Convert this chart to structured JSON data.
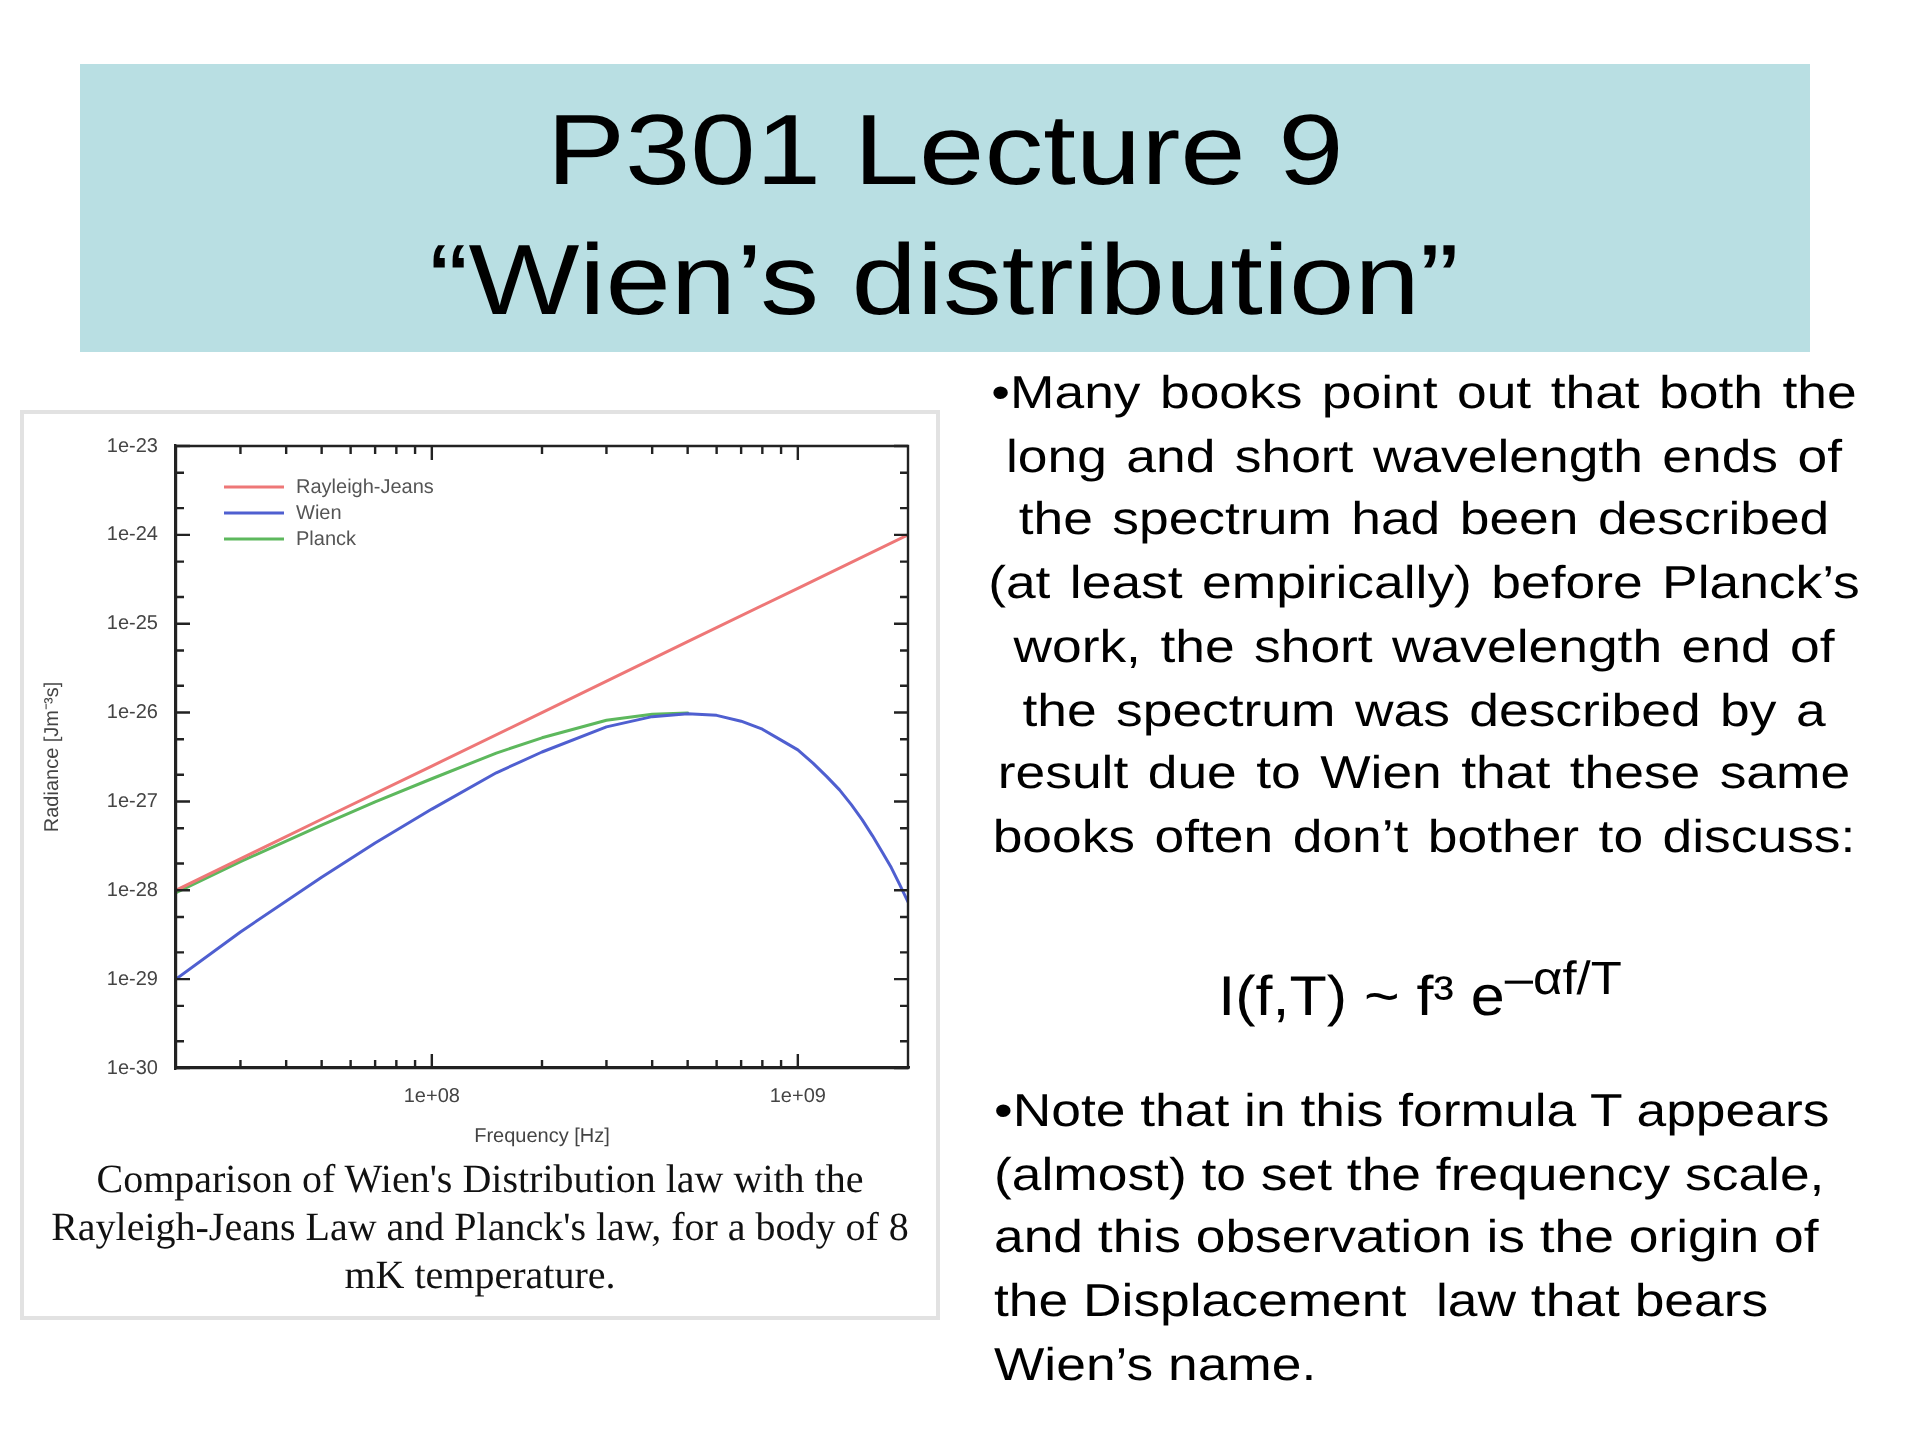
{
  "chart_data": {
    "type": "line",
    "title": "P301 Lecture 9",
    "subtitle": "“Wien’s distribution”",
    "xlabel": "Frequency [Hz]",
    "ylabel": "Radiance [Jm⁻³s]",
    "log": "xy",
    "legend": "top left",
    "marker": "none",
    "line_style": "solid",
    "xlim": [
      20000000.0,
      2000000000.0
    ],
    "xticks": [
      {
        "value": 30000000.0,
        "label": null
      },
      {
        "value": 40000000.0,
        "label": null
      },
      {
        "value": 50000000.0,
        "label": null
      },
      {
        "value": 60000000.0,
        "label": null
      },
      {
        "value": 70000000.0,
        "label": null
      },
      {
        "value": 80000000.0,
        "label": null
      },
      {
        "value": 90000000.0,
        "label": null
      },
      {
        "value": 100000000.0,
        "label": "1e+08"
      },
      {
        "value": 200000000.0,
        "label": null
      },
      {
        "value": 300000000.0,
        "label": null
      },
      {
        "value": 400000000.0,
        "label": null
      },
      {
        "value": 500000000.0,
        "label": null
      },
      {
        "value": 600000000.0,
        "label": null
      },
      {
        "value": 700000000.0,
        "label": null
      },
      {
        "value": 800000000.0,
        "label": null
      },
      {
        "value": 900000000.0,
        "label": null
      },
      {
        "value": 1000000000.0,
        "label": "1e+09"
      }
    ],
    "ylim": [
      1e-30,
      1e-23
    ],
    "yticks": [
      {
        "value": 1e-30,
        "label": "1e-30"
      },
      {
        "value": 2e-30,
        "label": null
      },
      {
        "value": 5e-30,
        "label": null
      },
      {
        "value": 1e-29,
        "label": "1e-29"
      },
      {
        "value": 2e-29,
        "label": null
      },
      {
        "value": 5e-29,
        "label": null
      },
      {
        "value": 1e-28,
        "label": "1e-28"
      },
      {
        "value": 2e-28,
        "label": null
      },
      {
        "value": 5e-28,
        "label": null
      },
      {
        "value": 1e-27,
        "label": "1e-27"
      },
      {
        "value": 2e-27,
        "label": null
      },
      {
        "value": 5e-27,
        "label": null
      },
      {
        "value": 1e-26,
        "label": "1e-26"
      },
      {
        "value": 2e-26,
        "label": null
      },
      {
        "value": 5e-26,
        "label": null
      },
      {
        "value": 1e-25,
        "label": "1e-25"
      },
      {
        "value": 2e-25,
        "label": null
      },
      {
        "value": 5e-25,
        "label": null
      },
      {
        "value": 1e-24,
        "label": "1e-24"
      },
      {
        "value": 2e-24,
        "label": null
      },
      {
        "value": 5e-24,
        "label": null
      },
      {
        "value": 1e-23,
        "label": "1e-23"
      }
    ],
    "series": [
      {
        "name": "Rayleigh-Jeans",
        "color": "#ee7777",
        "x": [
          20000000.0,
          50000000.0,
          100000000.0,
          200000000.0,
          500000000.0,
          1000000000.0,
          2000000000.0
        ],
        "values": [
          1e-28,
          6.3e-28,
          2.5e-27,
          1e-26,
          6.3e-26,
          2.5e-25,
          1e-24
        ]
      },
      {
        "name": "Wien",
        "color": "#4f5fd0",
        "x": [
          20000000.0,
          30000000.0,
          50000000.0,
          70000000.0,
          100000000.0,
          150000000.0,
          200000000.0,
          300000000.0,
          400000000.0,
          500000000.0,
          600000000.0,
          700000000.0,
          800000000.0,
          900000000.0,
          1000000000.0,
          1100000000.0,
          1200000000.0,
          1300000000.0,
          1400000000.0,
          1500000000.0,
          1600000000.0,
          1700000000.0,
          1800000000.0,
          1900000000.0,
          2000000000.0
        ],
        "values": [
          1e-29,
          3.4e-29,
          1.4e-28,
          3.4e-28,
          8.2e-28,
          2.1e-27,
          3.6e-27,
          6.9e-27,
          9e-27,
          9.7e-27,
          9.3e-27,
          8e-27,
          6.5e-27,
          4.9e-27,
          3.8e-27,
          2.7e-27,
          1.9e-27,
          1.35e-27,
          9.2e-28,
          6.2e-28,
          4.1e-28,
          2.7e-28,
          1.8e-28,
          1.15e-28,
          7.4e-29
        ]
      },
      {
        "name": "Planck",
        "color": "#5db85d",
        "x": [
          20000000.0,
          30000000.0,
          50000000.0,
          70000000.0,
          100000000.0,
          150000000.0,
          200000000.0,
          300000000.0,
          400000000.0,
          500000000.0
        ],
        "values": [
          9.4e-29,
          2.1e-28,
          5.4e-28,
          9.9e-28,
          1.8e-27,
          3.5e-27,
          5.2e-27,
          8.2e-27,
          9.6e-27,
          9.9e-27
        ]
      }
    ],
    "annotations": [
      "Comparison of Wien's Distribution law with the Rayleigh-Jeans Law and Planck's law, for a body of 8 mK temperature.",
      "•Many books point out that both the long and short wavelength ends of the spectrum had been described (at least empirically) before Planck’s work, the short wavelength end of the spectrum was described by a result due to Wien that these same books often don’t bother to discuss:",
      "I(f,T) ~ f³ e$^{–αf/T}$",
      "•Note that in this formula T appears (almost) to set the frequency scale, and this observation is the origin of the Displacement  law that bears Wien’s name."
    ]
  }
}
